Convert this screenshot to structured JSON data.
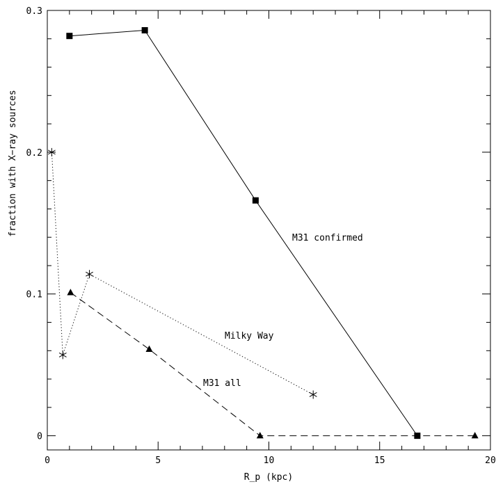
{
  "chart_data": {
    "type": "line",
    "xlabel": "R_p (kpc)",
    "ylabel": "fraction with X−ray sources",
    "xlim": [
      0,
      20
    ],
    "ylim": [
      -0.01,
      0.3
    ],
    "x_ticks": [
      0,
      5,
      10,
      15,
      20
    ],
    "x_tick_labels": [
      "0",
      "5",
      "10",
      "15",
      "20"
    ],
    "y_ticks": [
      0,
      0.1,
      0.2,
      0.3
    ],
    "y_tick_labels": [
      "0",
      "0.1",
      "0.2",
      "0.3"
    ],
    "grid": false,
    "legend": "none",
    "series": [
      {
        "name": "M31 confirmed",
        "marker": "square",
        "line": "solid",
        "x": [
          1.0,
          4.4,
          9.4,
          16.7
        ],
        "y": [
          0.282,
          0.286,
          0.166,
          0.0
        ]
      },
      {
        "name": "Milky Way",
        "marker": "asterisk",
        "line": "dotted",
        "x": [
          0.2,
          0.7,
          1.9,
          12.0
        ],
        "y": [
          0.2,
          0.057,
          0.114,
          0.029
        ]
      },
      {
        "name": "M31 all",
        "marker": "triangle",
        "line": "dashed",
        "x": [
          1.05,
          4.6,
          9.6,
          19.3
        ],
        "y": [
          0.101,
          0.061,
          0.0,
          0.0
        ]
      }
    ]
  }
}
